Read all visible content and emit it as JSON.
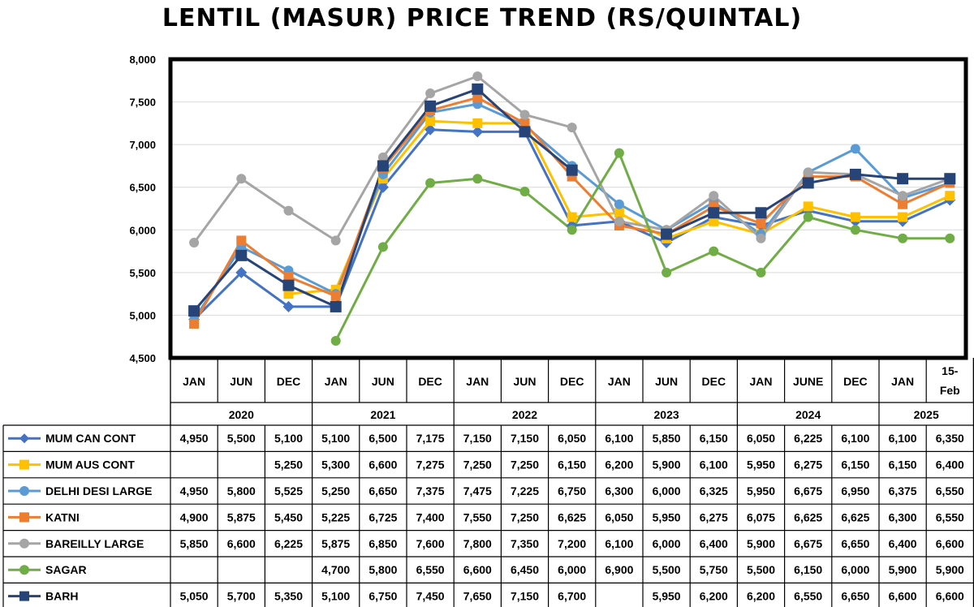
{
  "chart_data": {
    "type": "line",
    "title": "LENTIL (MASUR)  PRICE TREND (RS/QUINTAL)",
    "ylim": [
      4500,
      8000
    ],
    "yticks": [
      "4,500",
      "5,000",
      "5,500",
      "6,000",
      "6,500",
      "7,000",
      "7,500",
      "8,000"
    ],
    "grid": true,
    "legend": "table-below",
    "categories": [
      "JAN",
      "JUN",
      "DEC",
      "JAN",
      "JUN",
      "DEC",
      "JAN",
      "JUN",
      "DEC",
      "JAN",
      "JUN",
      "DEC",
      "JAN",
      "JUNE",
      "DEC",
      "JAN",
      "15-Feb"
    ],
    "years": [
      {
        "label": "2020",
        "start": 0,
        "span": 3
      },
      {
        "label": "2021",
        "start": 3,
        "span": 3
      },
      {
        "label": "2022",
        "start": 6,
        "span": 3
      },
      {
        "label": "2023",
        "start": 9,
        "span": 3
      },
      {
        "label": "2024",
        "start": 12,
        "span": 3
      },
      {
        "label": "2025",
        "start": 15,
        "span": 2
      }
    ],
    "series": [
      {
        "name": "MUM CAN CONT",
        "color": "#4472C4",
        "marker": "diamond",
        "values": [
          4950,
          5500,
          5100,
          5100,
          6500,
          7175,
          7150,
          7150,
          6050,
          6100,
          5850,
          6150,
          6050,
          6225,
          6100,
          6100,
          6350
        ],
        "labels": [
          "4,950",
          "5,500",
          "5,100",
          "5,100",
          "6,500",
          "7,175",
          "7,150",
          "7,150",
          "6,050",
          "6,100",
          "5,850",
          "6,150",
          "6,050",
          "6,225",
          "6,100",
          "6,100",
          "6,350"
        ]
      },
      {
        "name": "MUM AUS CONT",
        "color": "#FFC000",
        "marker": "square",
        "values": [
          null,
          null,
          5250,
          5300,
          6600,
          7275,
          7250,
          7250,
          6150,
          6200,
          5900,
          6100,
          5950,
          6275,
          6150,
          6150,
          6400
        ],
        "labels": [
          "",
          "",
          "5,250",
          "5,300",
          "6,600",
          "7,275",
          "7,250",
          "7,250",
          "6,150",
          "6,200",
          "5,900",
          "6,100",
          "5,950",
          "6,275",
          "6,150",
          "6,150",
          "6,400"
        ]
      },
      {
        "name": "DELHI DESI LARGE",
        "color": "#5B9BD5",
        "marker": "circle",
        "values": [
          4950,
          5800,
          5525,
          5250,
          6650,
          7375,
          7475,
          7225,
          6750,
          6300,
          6000,
          6325,
          5950,
          6675,
          6950,
          6375,
          6550
        ],
        "labels": [
          "4,950",
          "5,800",
          "5,525",
          "5,250",
          "6,650",
          "7,375",
          "7,475",
          "7,225",
          "6,750",
          "6,300",
          "6,000",
          "6,325",
          "5,950",
          "6,675",
          "6,950",
          "6,375",
          "6,550"
        ]
      },
      {
        "name": "KATNI",
        "color": "#ED7D31",
        "marker": "square",
        "values": [
          4900,
          5875,
          5450,
          5225,
          6725,
          7400,
          7550,
          7250,
          6625,
          6050,
          5950,
          6275,
          6075,
          6625,
          6625,
          6300,
          6550
        ],
        "labels": [
          "4,900",
          "5,875",
          "5,450",
          "5,225",
          "6,725",
          "7,400",
          "7,550",
          "7,250",
          "6,625",
          "6,050",
          "5,950",
          "6,275",
          "6,075",
          "6,625",
          "6,625",
          "6,300",
          "6,550"
        ]
      },
      {
        "name": "BAREILLY LARGE",
        "color": "#A5A5A5",
        "marker": "circle",
        "values": [
          5850,
          6600,
          6225,
          5875,
          6850,
          7600,
          7800,
          7350,
          7200,
          6100,
          6000,
          6400,
          5900,
          6675,
          6650,
          6400,
          6600
        ],
        "labels": [
          "5,850",
          "6,600",
          "6,225",
          "5,875",
          "6,850",
          "7,600",
          "7,800",
          "7,350",
          "7,200",
          "6,100",
          "6,000",
          "6,400",
          "5,900",
          "6,675",
          "6,650",
          "6,400",
          "6,600"
        ]
      },
      {
        "name": "SAGAR",
        "color": "#70AD47",
        "marker": "circle",
        "values": [
          null,
          null,
          null,
          4700,
          5800,
          6550,
          6600,
          6450,
          6000,
          6900,
          5500,
          5750,
          5500,
          6150,
          6000,
          5900,
          5900
        ],
        "labels": [
          "",
          "",
          "",
          "4,700",
          "5,800",
          "6,550",
          "6,600",
          "6,450",
          "6,000",
          "6,900",
          "5,500",
          "5,750",
          "5,500",
          "6,150",
          "6,000",
          "5,900",
          "5,900"
        ]
      },
      {
        "name": "BARH",
        "color": "#264478",
        "marker": "square",
        "values": [
          5050,
          5700,
          5350,
          5100,
          6750,
          7450,
          7650,
          7150,
          6700,
          null,
          5950,
          6200,
          6200,
          6550,
          6650,
          6600,
          6600
        ],
        "labels": [
          "5,050",
          "5,700",
          "5,350",
          "5,100",
          "6,750",
          "7,450",
          "7,650",
          "7,150",
          "6,700",
          "",
          "5,950",
          "6,200",
          "6,200",
          "6,550",
          "6,650",
          "6,600",
          "6,600"
        ]
      }
    ]
  }
}
